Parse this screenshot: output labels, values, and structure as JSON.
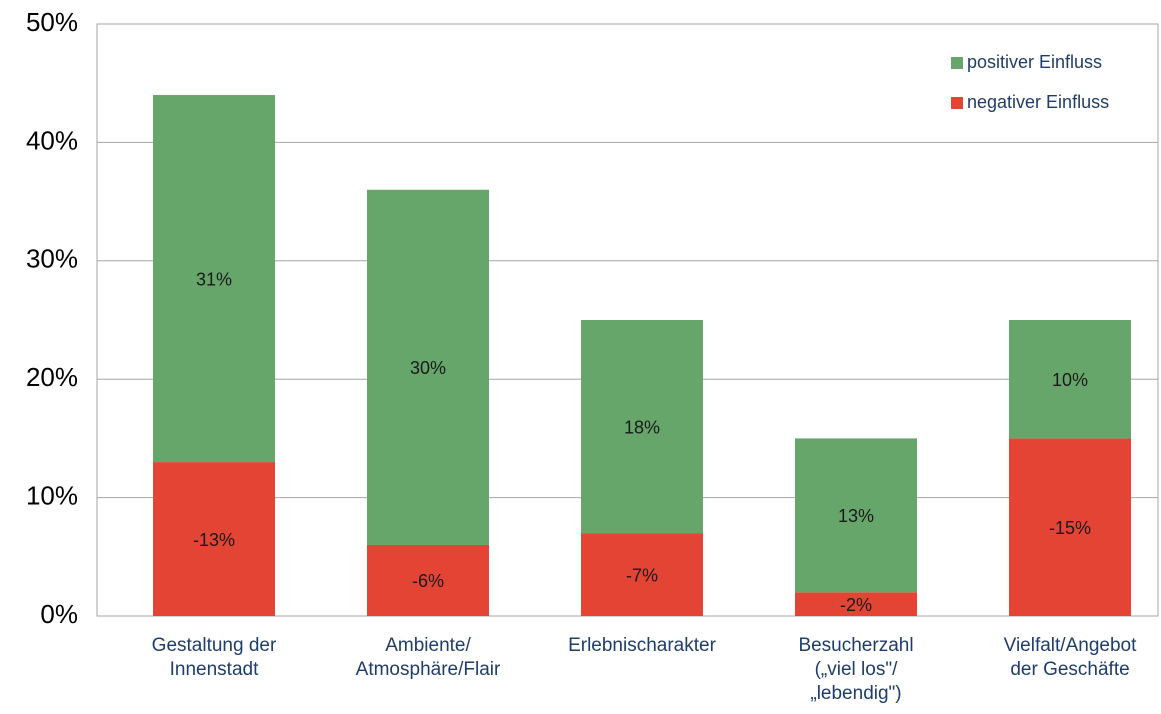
{
  "chart_data": {
    "type": "stacked_bar",
    "categories": [
      [
        "Gestaltung der",
        "Innenstadt"
      ],
      [
        "Ambiente/",
        "Atmosphäre/Flair"
      ],
      [
        "Erlebnischarakter"
      ],
      [
        "Besucherzahl",
        "(„viel los\"/",
        "„lebendig\")"
      ],
      [
        "Vielfalt/Angebot",
        "der Geschäfte"
      ]
    ],
    "series": [
      {
        "name": "negativer Einfluss",
        "color": "#e34434",
        "values": [
          13,
          6,
          7,
          2,
          15
        ],
        "value_labels": [
          "-13%",
          "-6%",
          "-7%",
          "-2%",
          "-15%"
        ]
      },
      {
        "name": "positiver Einfluss",
        "color": "#66a66b",
        "values": [
          31,
          30,
          18,
          13,
          10
        ],
        "value_labels": [
          "31%",
          "30%",
          "18%",
          "13%",
          "10%"
        ]
      }
    ],
    "ylim": [
      0,
      50
    ],
    "yticks": [
      {
        "value": 0,
        "label": "0%"
      },
      {
        "value": 10,
        "label": "10%"
      },
      {
        "value": 20,
        "label": "20%"
      },
      {
        "value": 30,
        "label": "30%"
      },
      {
        "value": 40,
        "label": "40%"
      },
      {
        "value": 50,
        "label": "50%"
      }
    ],
    "grid": true,
    "legend": "top-right"
  }
}
